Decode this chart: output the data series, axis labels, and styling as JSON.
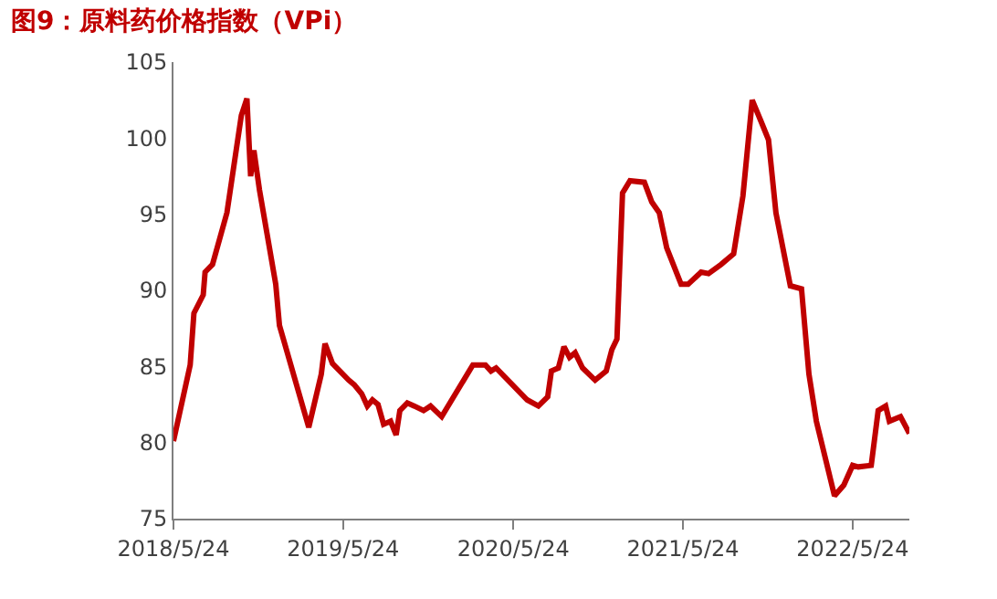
{
  "chart_data": {
    "type": "line",
    "title": "图9：原料药价格指数（VPi）",
    "x": [
      "2018-05-24",
      "2018-06-29",
      "2018-07-07",
      "2018-07-27",
      "2018-07-31",
      "2018-08-16",
      "2018-09-16",
      "2018-10-17",
      "2018-10-29",
      "2018-11-06",
      "2018-11-13",
      "2018-11-25",
      "2018-12-30",
      "2019-01-07",
      "2019-03-11",
      "2019-04-07",
      "2019-04-15",
      "2019-05-01",
      "2019-06-05",
      "2019-06-17",
      "2019-07-03",
      "2019-07-15",
      "2019-07-26",
      "2019-08-07",
      "2019-08-19",
      "2019-09-03",
      "2019-09-15",
      "2019-09-23",
      "2019-10-09",
      "2019-10-24",
      "2019-11-13",
      "2019-11-28",
      "2019-12-22",
      "2020-02-27",
      "2020-03-25",
      "2020-04-06",
      "2020-04-17",
      "2020-06-23",
      "2020-07-17",
      "2020-08-06",
      "2020-08-14",
      "2020-08-29",
      "2020-09-10",
      "2020-09-22",
      "2020-10-04",
      "2020-10-20",
      "2020-11-16",
      "2020-12-10",
      "2020-12-22",
      "2021-01-02",
      "2021-01-14",
      "2021-01-30",
      "2021-03-02",
      "2021-03-18",
      "2021-04-03",
      "2021-04-19",
      "2021-05-20",
      "2021-06-04",
      "2021-07-02",
      "2021-07-18",
      "2021-08-14",
      "2021-09-10",
      "2021-09-30",
      "2021-10-20",
      "2021-11-08",
      "2021-11-24",
      "2021-12-10",
      "2022-01-10",
      "2022-02-03",
      "2022-02-19",
      "2022-03-07",
      "2022-04-15",
      "2022-05-05",
      "2022-05-24",
      "2022-06-05",
      "2022-07-03",
      "2022-07-18",
      "2022-08-03",
      "2022-08-11",
      "2022-09-04",
      "2022-09-23"
    ],
    "series": [
      {
        "color": "#c00000",
        "values": [
          80.1,
          85.1,
          88.5,
          89.7,
          91.2,
          91.7,
          95.1,
          101.5,
          102.6,
          97.5,
          99.2,
          96.6,
          90.4,
          87.7,
          81.0,
          84.5,
          86.5,
          85.2,
          84.1,
          83.8,
          83.2,
          82.4,
          82.8,
          82.5,
          81.2,
          81.4,
          80.5,
          82.1,
          82.6,
          82.4,
          82.1,
          82.4,
          81.7,
          85.1,
          85.1,
          84.7,
          84.9,
          82.8,
          82.4,
          83.0,
          84.7,
          84.9,
          86.3,
          85.6,
          85.9,
          84.9,
          84.1,
          84.7,
          86.1,
          86.8,
          96.4,
          97.2,
          97.1,
          95.8,
          95.1,
          92.8,
          90.4,
          90.4,
          91.2,
          91.1,
          91.7,
          92.4,
          96.2,
          102.5,
          101.1,
          99.9,
          95.1,
          90.3,
          90.1,
          84.5,
          81.4,
          76.5,
          77.2,
          78.5,
          78.4,
          78.5,
          82.1,
          82.4,
          81.4,
          81.7,
          80.6
        ]
      }
    ],
    "xlim": [
      "2018-05-24",
      "2022-09-23"
    ],
    "xticks": [
      {
        "value": "2018-05-24",
        "label": "2018/5/24"
      },
      {
        "value": "2019-05-24",
        "label": "2019/5/24"
      },
      {
        "value": "2020-05-24",
        "label": "2020/5/24"
      },
      {
        "value": "2021-05-24",
        "label": "2021/5/24"
      },
      {
        "value": "2022-05-24",
        "label": "2022/5/24"
      }
    ],
    "ylim": [
      75,
      105
    ],
    "yticks": [
      75,
      80,
      85,
      90,
      95,
      100,
      105
    ],
    "grid": false,
    "marker": "none",
    "line_style": "solid"
  }
}
